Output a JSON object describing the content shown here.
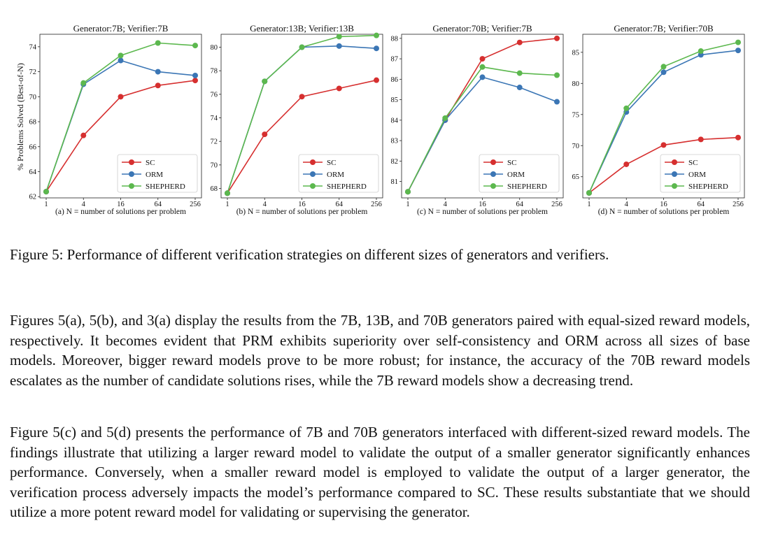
{
  "figure": {
    "ylabel": "% Problems Solved (Best-of-N)",
    "legend_labels": [
      "SC",
      "ORM",
      "SHEPHERD"
    ],
    "colors": {
      "SC": "#d62f2f",
      "ORM": "#3b76b5",
      "SHEPHERD": "#5cb84e"
    }
  },
  "chart_data": [
    {
      "type": "line",
      "title": "Generator:7B; Verifier:7B",
      "xlabel": "(a) N = number of solutions per problem",
      "ylabel": "% Problems Solved (Best-of-N)",
      "x": [
        1,
        4,
        16,
        64,
        256
      ],
      "xticks": [
        "1",
        "4",
        "16",
        "64",
        "256"
      ],
      "ylim": [
        61.9,
        75.0
      ],
      "yticks": [
        62,
        64,
        66,
        68,
        70,
        72,
        74
      ],
      "legend": "lower-right",
      "series": [
        {
          "name": "SC",
          "values": [
            62.4,
            66.9,
            70.0,
            70.9,
            71.3
          ]
        },
        {
          "name": "ORM",
          "values": [
            62.4,
            71.0,
            72.9,
            72.0,
            71.7
          ]
        },
        {
          "name": "SHEPHERD",
          "values": [
            62.4,
            71.1,
            73.3,
            74.3,
            74.1
          ]
        }
      ]
    },
    {
      "type": "line",
      "title": "Generator:13B; Verifier:13B",
      "xlabel": "(b) N = number of solutions per problem",
      "ylabel": "",
      "x": [
        1,
        4,
        16,
        64,
        256
      ],
      "xticks": [
        "1",
        "4",
        "16",
        "64",
        "256"
      ],
      "ylim": [
        67.2,
        81.1
      ],
      "yticks": [
        68,
        70,
        72,
        74,
        76,
        78,
        80
      ],
      "legend": "lower-right",
      "series": [
        {
          "name": "SC",
          "values": [
            67.6,
            72.6,
            75.8,
            76.5,
            77.2
          ]
        },
        {
          "name": "ORM",
          "values": [
            67.6,
            77.1,
            80.0,
            80.1,
            79.9
          ]
        },
        {
          "name": "SHEPHERD",
          "values": [
            67.6,
            77.1,
            80.0,
            80.9,
            81.0
          ]
        }
      ]
    },
    {
      "type": "line",
      "title": "Generator:70B; Verifier:7B",
      "xlabel": "(c) N = number of solutions per problem",
      "ylabel": "",
      "x": [
        1,
        4,
        16,
        64,
        256
      ],
      "xticks": [
        "1",
        "4",
        "16",
        "64",
        "256"
      ],
      "ylim": [
        80.2,
        88.2
      ],
      "yticks": [
        81,
        82,
        83,
        84,
        85,
        86,
        87,
        88
      ],
      "legend": "lower-right",
      "series": [
        {
          "name": "SC",
          "values": [
            80.5,
            84.0,
            87.0,
            87.8,
            88.0
          ]
        },
        {
          "name": "ORM",
          "values": [
            80.5,
            84.0,
            86.1,
            85.6,
            84.9
          ]
        },
        {
          "name": "SHEPHERD",
          "values": [
            80.5,
            84.1,
            86.6,
            86.3,
            86.2
          ]
        }
      ]
    },
    {
      "type": "line",
      "title": "Generator:7B; Verifier:70B",
      "xlabel": "(d) N = number of solutions per problem",
      "ylabel": "",
      "x": [
        1,
        4,
        16,
        64,
        256
      ],
      "xticks": [
        "1",
        "4",
        "16",
        "64",
        "256"
      ],
      "ylim": [
        61.6,
        87.9
      ],
      "yticks": [
        65,
        70,
        75,
        80,
        85
      ],
      "legend": "lower-right",
      "series": [
        {
          "name": "SC",
          "values": [
            62.4,
            67.0,
            70.1,
            71.0,
            71.3
          ]
        },
        {
          "name": "ORM",
          "values": [
            62.4,
            75.4,
            81.8,
            84.6,
            85.3
          ]
        },
        {
          "name": "SHEPHERD",
          "values": [
            62.4,
            76.0,
            82.7,
            85.2,
            86.6
          ]
        }
      ]
    }
  ],
  "caption": "Figure 5: Performance of different verification strategies on different sizes of generators and verifiers.",
  "paragraphs": [
    "Figures 5(a), 5(b), and 3(a) display the results from the 7B, 13B, and 70B generators paired with equal-sized reward models, respectively. It becomes evident that PRM exhibits superiority over self-consistency and ORM across all sizes of base models. Moreover, bigger reward models prove to be more robust; for instance, the accuracy of the 70B reward models escalates as the number of candidate solutions rises, while the 7B reward models show a decreasing trend.",
    "Figure 5(c) and 5(d) presents the performance of 7B and 70B generators interfaced with different-sized reward models. The findings illustrate that utilizing a larger reward model to validate the output of a smaller generator significantly enhances performance. Conversely, when a smaller reward model is employed to validate the output of a larger generator, the verification process adversely impacts the model’s performance compared to SC. These results substantiate that we should utilize a more potent reward model for validating or supervising the generator."
  ]
}
